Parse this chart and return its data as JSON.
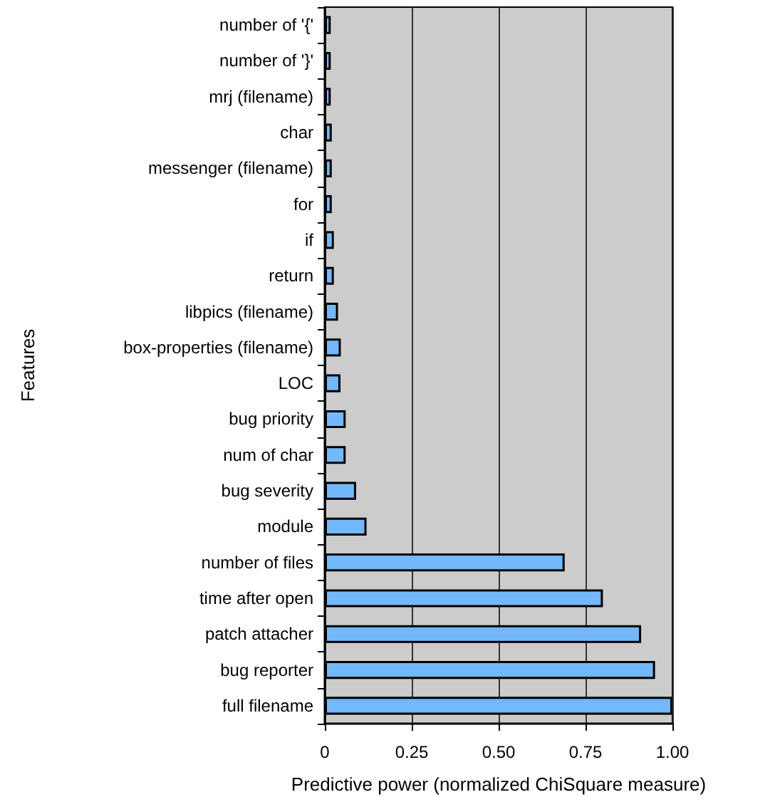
{
  "chart_data": {
    "type": "bar",
    "orientation": "horizontal",
    "categories": [
      "number of '{'",
      "number of '}'",
      "mrj (filename)",
      "char",
      "messenger (filename)",
      "for",
      "if",
      "return",
      "libpics (filename)",
      "box-properties (filename)",
      "LOC",
      "bug priority",
      "num of char",
      "bug severity",
      "module",
      "number of files",
      "time after open",
      "patch attacher",
      "bug reporter",
      "full filename"
    ],
    "values": [
      0.017,
      0.017,
      0.017,
      0.02,
      0.02,
      0.02,
      0.026,
      0.026,
      0.038,
      0.046,
      0.045,
      0.06,
      0.06,
      0.09,
      0.12,
      0.69,
      0.8,
      0.91,
      0.95,
      1.0
    ],
    "color": "#74b8fc",
    "xlabel": "Predictive power (normalized ChiSquare measure)",
    "ylabel": "Features",
    "xlim": [
      0,
      1
    ],
    "xticks": [
      0,
      0.25,
      {
        "value": 0.5,
        "label": "0.50"
      },
      0.75,
      {
        "value": 1,
        "label": "1.00"
      }
    ],
    "grid": "x"
  }
}
